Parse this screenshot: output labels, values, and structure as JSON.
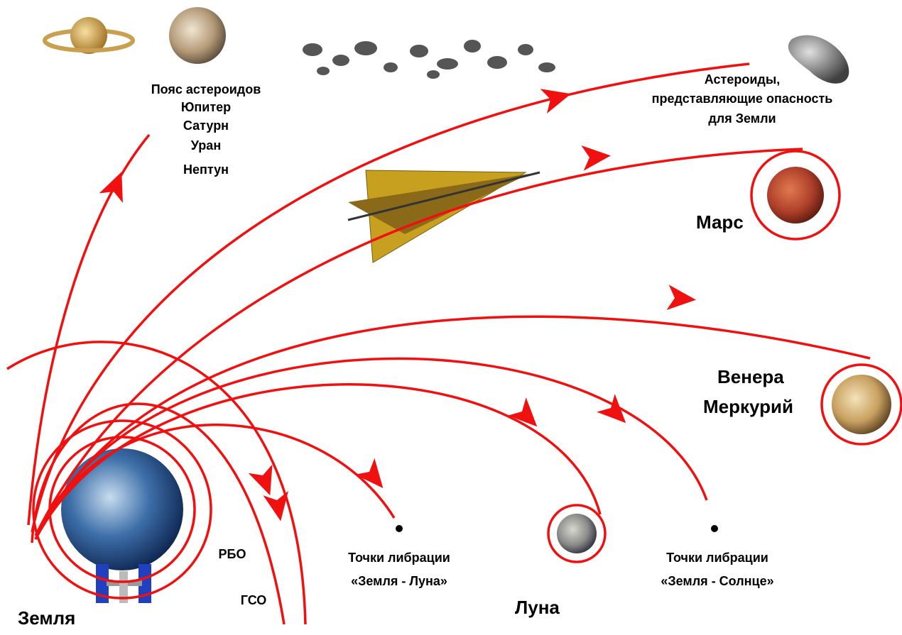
{
  "labels": {
    "outer_planets": [
      "Пояс астероидов",
      "Юпитер",
      "Сатурн",
      "Уран",
      "Нептун"
    ],
    "hazardous_asteroids": [
      "Астероиды,",
      "представляющие опасность",
      "для Земли"
    ],
    "mars": "Марс",
    "inner_planets": [
      "Венера",
      "Меркурий"
    ],
    "libration_earth_moon": [
      "Точки либрации",
      "«Земля - Луна»"
    ],
    "libration_earth_sun": [
      "Точки либрации",
      "«Земля - Солнце»"
    ],
    "moon": "Луна",
    "leo": "РБО",
    "geo": "ГСО",
    "earth": "Земля"
  }
}
